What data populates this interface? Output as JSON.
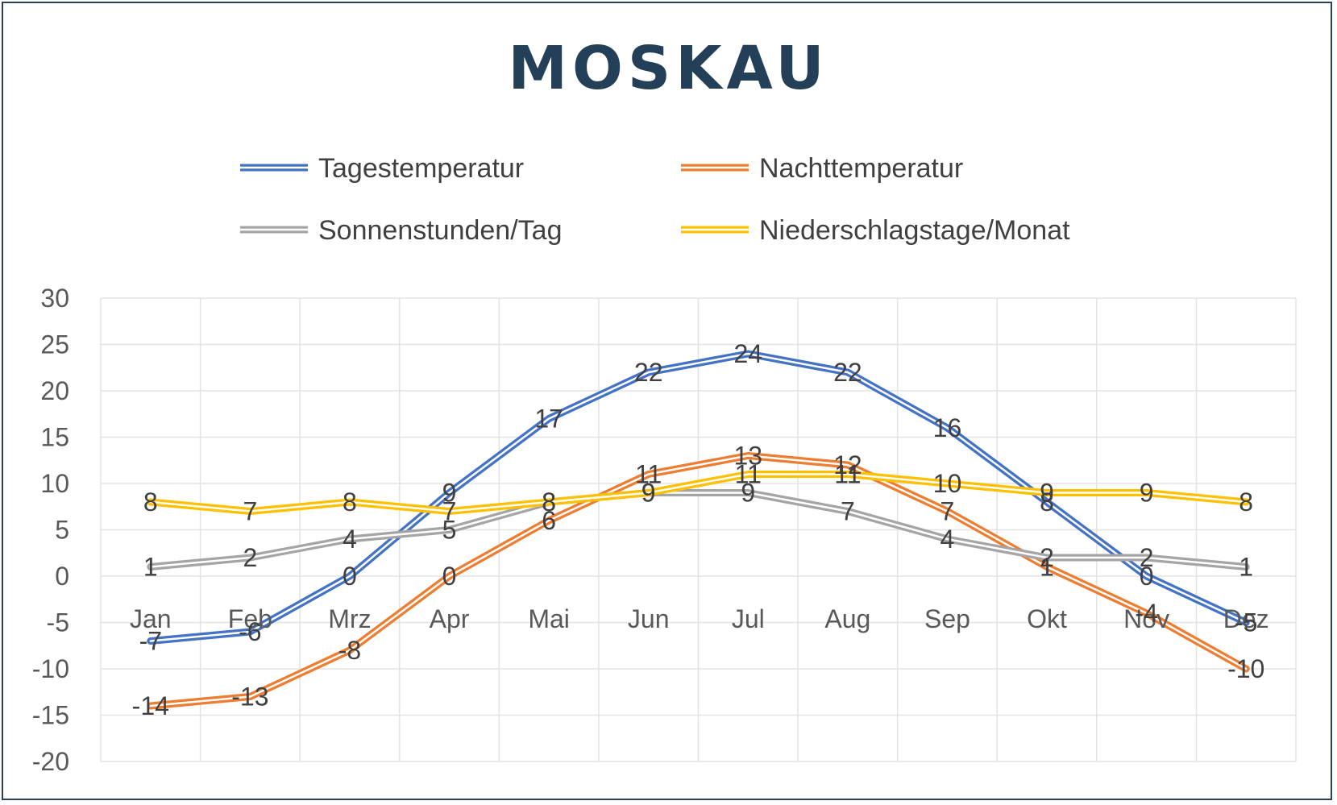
{
  "chart_data": {
    "type": "line",
    "title": "MOSKAU",
    "categories": [
      "Jan",
      "Feb",
      "Mrz",
      "Apr",
      "Mai",
      "Jun",
      "Jul",
      "Aug",
      "Sep",
      "Okt",
      "Nov",
      "Dez"
    ],
    "ylim": [
      -20,
      30
    ],
    "yticks": [
      30,
      25,
      20,
      15,
      10,
      5,
      0,
      -5,
      -10,
      -15,
      -20
    ],
    "grid": true,
    "legend_position": "top",
    "series": [
      {
        "name": "Tagestemperatur",
        "color": "#4472c4",
        "values": [
          -7,
          -6,
          0,
          9,
          17,
          22,
          24,
          22,
          16,
          8,
          0,
          -5
        ]
      },
      {
        "name": "Nachttemperatur",
        "color": "#ed7d31",
        "values": [
          -14,
          -13,
          -8,
          0,
          6,
          11,
          13,
          12,
          7,
          1,
          -4,
          -10
        ]
      },
      {
        "name": "Sonnenstunden/Tag",
        "color": "#a5a5a5",
        "values": [
          1,
          2,
          4,
          5,
          8,
          9,
          9,
          7,
          4,
          2,
          2,
          1
        ]
      },
      {
        "name": "Niederschlagstage/Monat",
        "color": "#ffc000",
        "values": [
          8,
          7,
          8,
          7,
          8,
          9,
          11,
          11,
          10,
          9,
          9,
          8
        ]
      }
    ]
  }
}
